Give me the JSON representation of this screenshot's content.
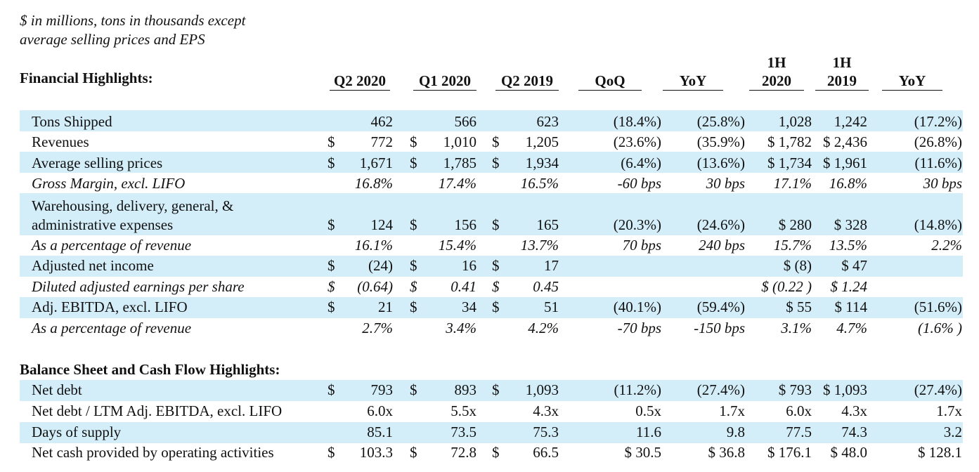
{
  "note": [
    "$ in millions, tons in thousands except",
    "average selling prices and EPS"
  ],
  "title": "Financial Highlights:",
  "columns": [
    {
      "l1": "",
      "l2": "Q2 2020"
    },
    {
      "l1": "",
      "l2": "Q1 2020"
    },
    {
      "l1": "",
      "l2": "Q2 2019"
    },
    {
      "l1": "",
      "l2": "QoQ"
    },
    {
      "l1": "",
      "l2": "YoY"
    },
    {
      "l1": "1H",
      "l2": "2020"
    },
    {
      "l1": "1H",
      "l2": "2019"
    },
    {
      "l1": "",
      "l2": "YoY"
    }
  ],
  "section2": "Balance Sheet and Cash Flow Highlights:",
  "rows": [
    {
      "label": "Tons Shipped",
      "italic": false,
      "cells": [
        "",
        "462",
        "",
        "566",
        "",
        "623",
        "(18.4%)",
        "(25.8%)",
        "1,028",
        "1,242",
        "(17.2%)"
      ]
    },
    {
      "label": "Revenues",
      "italic": false,
      "cells": [
        "$",
        "772",
        "$",
        "1,010",
        "$",
        "1,205",
        "(23.6%)",
        "(35.9%)",
        "$ 1,782",
        "$ 2,436",
        "(26.8%)"
      ]
    },
    {
      "label": "Average selling prices",
      "italic": false,
      "cells": [
        "$",
        "1,671",
        "$",
        "1,785",
        "$",
        "1,934",
        "(6.4%)",
        "(13.6%)",
        "$ 1,734",
        "$ 1,961",
        "(11.6%)"
      ]
    },
    {
      "label": "Gross Margin, excl. LIFO",
      "italic": true,
      "cells": [
        "",
        "16.8%",
        "",
        "17.4%",
        "",
        "16.5%",
        "-60 bps",
        "30 bps",
        "17.1%",
        "16.8%",
        "30 bps"
      ]
    },
    {
      "label": "Warehousing, delivery, general, &",
      "label2": "administrative expenses",
      "italic": false,
      "cells": [
        "$",
        "124",
        "$",
        "156",
        "$",
        "165",
        "(20.3%)",
        "(24.6%)",
        "$ 280",
        "$ 328",
        "(14.8%)"
      ]
    },
    {
      "label": "As a percentage of revenue",
      "italic": true,
      "cells": [
        "",
        "16.1%",
        "",
        "15.4%",
        "",
        "13.7%",
        "70 bps",
        "240 bps",
        "15.7%",
        "13.5%",
        "2.2%"
      ]
    },
    {
      "label": "Adjusted net income",
      "italic": false,
      "cells": [
        "$",
        "(24)",
        "$",
        "16",
        "$",
        "17",
        "",
        "",
        "$ (8)",
        "$ 47",
        ""
      ]
    },
    {
      "label": "Diluted adjusted earnings per share",
      "italic": true,
      "cells": [
        "$",
        "(0.64)",
        "$",
        "0.41",
        "$",
        "0.45",
        "",
        "",
        "$ (0.22 )",
        "$ 1.24",
        ""
      ]
    },
    {
      "label": "Adj. EBITDA, excl. LIFO",
      "italic": false,
      "cells": [
        "$",
        "21",
        "$",
        "34",
        "$",
        "51",
        "(40.1%)",
        "(59.4%)",
        "$ 55",
        "$ 114",
        "(51.6%)"
      ]
    },
    {
      "label": "As a percentage of revenue",
      "italic": true,
      "cells": [
        "",
        "2.7%",
        "",
        "3.4%",
        "",
        "4.2%",
        "-70 bps",
        "-150 bps",
        "3.1%",
        "4.7%",
        "(1.6% )"
      ]
    },
    {
      "label": "Net debt",
      "italic": false,
      "cells": [
        "$",
        "793",
        "$",
        "893",
        "$",
        "1,093",
        "(11.2%)",
        "(27.4%)",
        "$ 793",
        "$ 1,093",
        "(27.4%)"
      ]
    },
    {
      "label": "Net debt / LTM Adj. EBITDA, excl. LIFO",
      "italic": false,
      "cells": [
        "",
        "6.0x",
        "",
        "5.5x",
        "",
        "4.3x",
        "0.5x",
        "1.7x",
        "6.0x",
        "4.3x",
        "1.7x"
      ]
    },
    {
      "label": "Days of supply",
      "italic": false,
      "cells": [
        "",
        "85.1",
        "",
        "73.5",
        "",
        "75.3",
        "11.6",
        "9.8",
        "77.5",
        "74.3",
        "3.2"
      ]
    },
    {
      "label": "Net cash provided by operating activities",
      "italic": false,
      "cells": [
        "$",
        "103.3",
        "$",
        "72.8",
        "$",
        "66.5",
        "$ 30.5",
        "$ 36.8",
        "$ 176.1",
        "$ 48.0",
        "$ 128.1"
      ]
    }
  ]
}
